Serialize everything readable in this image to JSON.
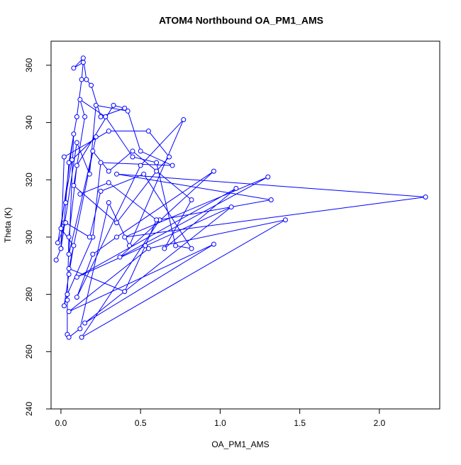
{
  "chart_data": {
    "type": "line-points",
    "title": "ATOM4 Northbound OA_PM1_AMS",
    "x_label": "OA_PM1_AMS",
    "y_label": "Theta (K)",
    "color": "#0000ff",
    "x": [
      -0.03,
      0,
      0.02,
      0.03,
      0.05,
      0.1,
      0.13,
      0.14,
      0.08,
      0.14,
      0.16,
      0.19,
      0.25,
      0.4,
      0.33,
      0.1,
      0.05,
      0.04,
      0.04,
      0.05,
      0.12,
      0.3,
      0.43,
      0.77,
      0.5,
      0.1,
      0.2,
      0.35,
      0.96,
      0.37,
      1.3,
      0.4,
      2.29,
      0.35,
      1.32,
      0.62,
      0.13,
      1.41,
      0.55,
      0.05,
      0.96,
      0.15,
      1.07,
      0.1,
      1.1,
      0.65,
      0.82,
      0.45,
      0.3,
      0.2,
      0.05,
      0.08,
      0,
      0.08,
      0.05,
      0.02,
      0.04,
      0.2,
      0.25,
      0.7,
      0.5,
      0.42,
      0.22,
      0.18,
      0.1,
      0,
      0.02,
      0.3,
      0.55,
      0.68,
      0.6,
      0.35,
      0.08,
      0.15,
      0.12,
      0.28,
      0.45,
      0.6,
      0.72,
      0.82,
      0.52,
      0.25,
      0.18,
      0.03,
      -0.02,
      0.07,
      0.22,
      0.05,
      0.4,
      0.53,
      0.6,
      0.3,
      0.12
    ],
    "values": [
      292,
      296,
      305,
      312,
      326,
      342,
      355,
      361,
      359,
      362.5,
      355,
      353,
      342,
      345,
      346,
      325,
      300,
      278,
      266,
      265,
      268,
      312,
      297,
      341,
      325,
      279,
      294,
      300,
      323,
      293,
      321,
      300,
      314,
      322,
      313,
      306,
      265,
      306,
      296,
      274,
      297.5,
      270,
      310.5,
      286,
      317,
      296,
      313,
      330,
      323,
      330,
      294,
      336,
      303,
      297,
      287,
      276,
      280,
      300,
      326,
      325,
      330,
      344,
      346,
      322,
      333,
      296,
      328,
      337,
      337,
      328,
      323,
      305,
      318,
      342,
      348,
      342,
      328,
      326,
      297,
      296,
      322,
      316,
      300,
      305,
      298,
      327,
      335,
      289,
      281,
      297,
      306,
      319,
      315
    ],
    "xlim": [
      -0.062,
      2.379
    ],
    "ylim": [
      240,
      368.4
    ],
    "xticks": [
      {
        "value": 0,
        "label": "0.0"
      },
      0.5,
      {
        "value": 1,
        "label": "1.0"
      },
      1.5,
      {
        "value": 2,
        "label": "2.0"
      }
    ],
    "yticks": [
      240,
      260,
      280,
      300,
      320,
      340,
      360
    ]
  }
}
